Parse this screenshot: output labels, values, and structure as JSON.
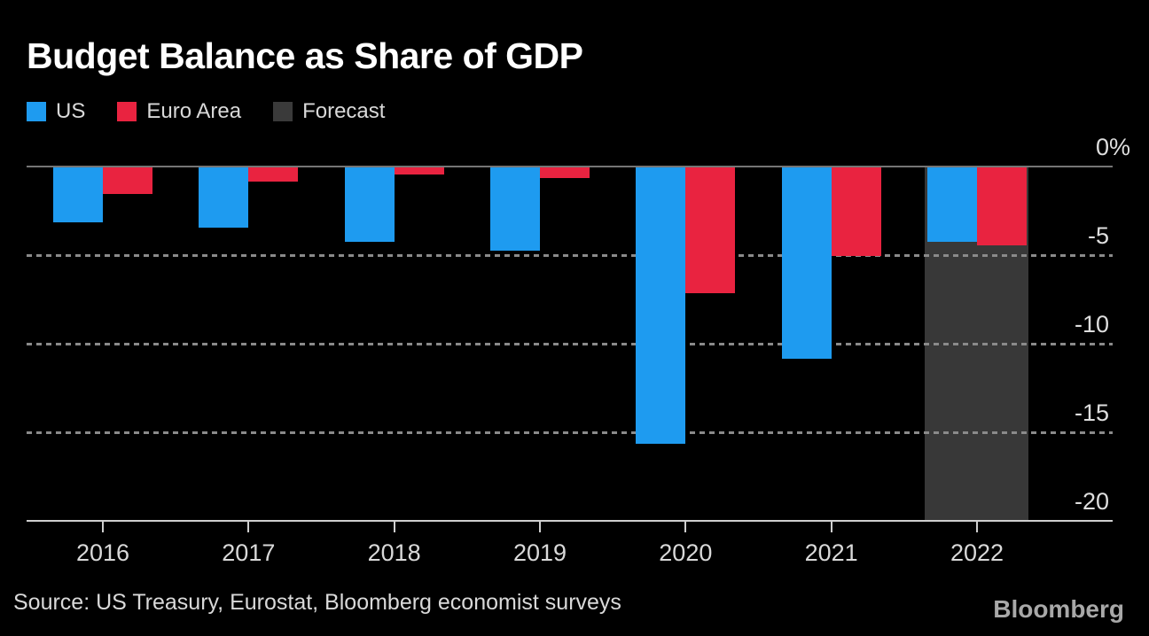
{
  "title": "Budget Balance as Share of GDP",
  "legend": {
    "items": [
      {
        "label": "US",
        "color": "#1e9bf0"
      },
      {
        "label": "Euro Area",
        "color": "#e92340"
      },
      {
        "label": "Forecast",
        "color": "#3a3a3a"
      }
    ]
  },
  "source": "Source: US Treasury, Eurostat, Bloomberg economist surveys",
  "branding": "Bloomberg",
  "colors": {
    "background": "#000000",
    "us_bar": "#1e9bf0",
    "euro_area_bar": "#e92340",
    "forecast_band": "#383838",
    "zero_line": "#757575",
    "gridline": "#8a8a8a",
    "axis_line": "#cfcfcf",
    "label_text": "#d9d9d9",
    "title_text": "#ffffff"
  },
  "chart_data": {
    "type": "bar",
    "title": "Budget Balance as Share of GDP",
    "categories": [
      "2016",
      "2017",
      "2018",
      "2019",
      "2020",
      "2021",
      "2022"
    ],
    "series": [
      {
        "name": "US",
        "color": "#1e9bf0",
        "values": [
          -3.1,
          -3.4,
          -4.2,
          -4.7,
          -15.6,
          -10.8,
          -4.2
        ]
      },
      {
        "name": "Euro Area",
        "color": "#e92340",
        "values": [
          -1.5,
          -0.8,
          -0.4,
          -0.6,
          -7.1,
          -5.0,
          -4.4
        ]
      }
    ],
    "forecast_categories": [
      "2022"
    ],
    "unit": "%",
    "xlabel": "",
    "ylabel": "",
    "ylim": [
      -20,
      0
    ],
    "yticks": [
      {
        "label": "0%",
        "value": 0
      },
      {
        "label": "-5",
        "value": -5
      },
      {
        "label": "-10",
        "value": -10
      },
      {
        "label": "-15",
        "value": -15
      },
      {
        "label": "-20",
        "value": -20
      }
    ],
    "grid": "horizontal-dotted",
    "legend_position": "top-left",
    "y_axis_side": "right"
  }
}
